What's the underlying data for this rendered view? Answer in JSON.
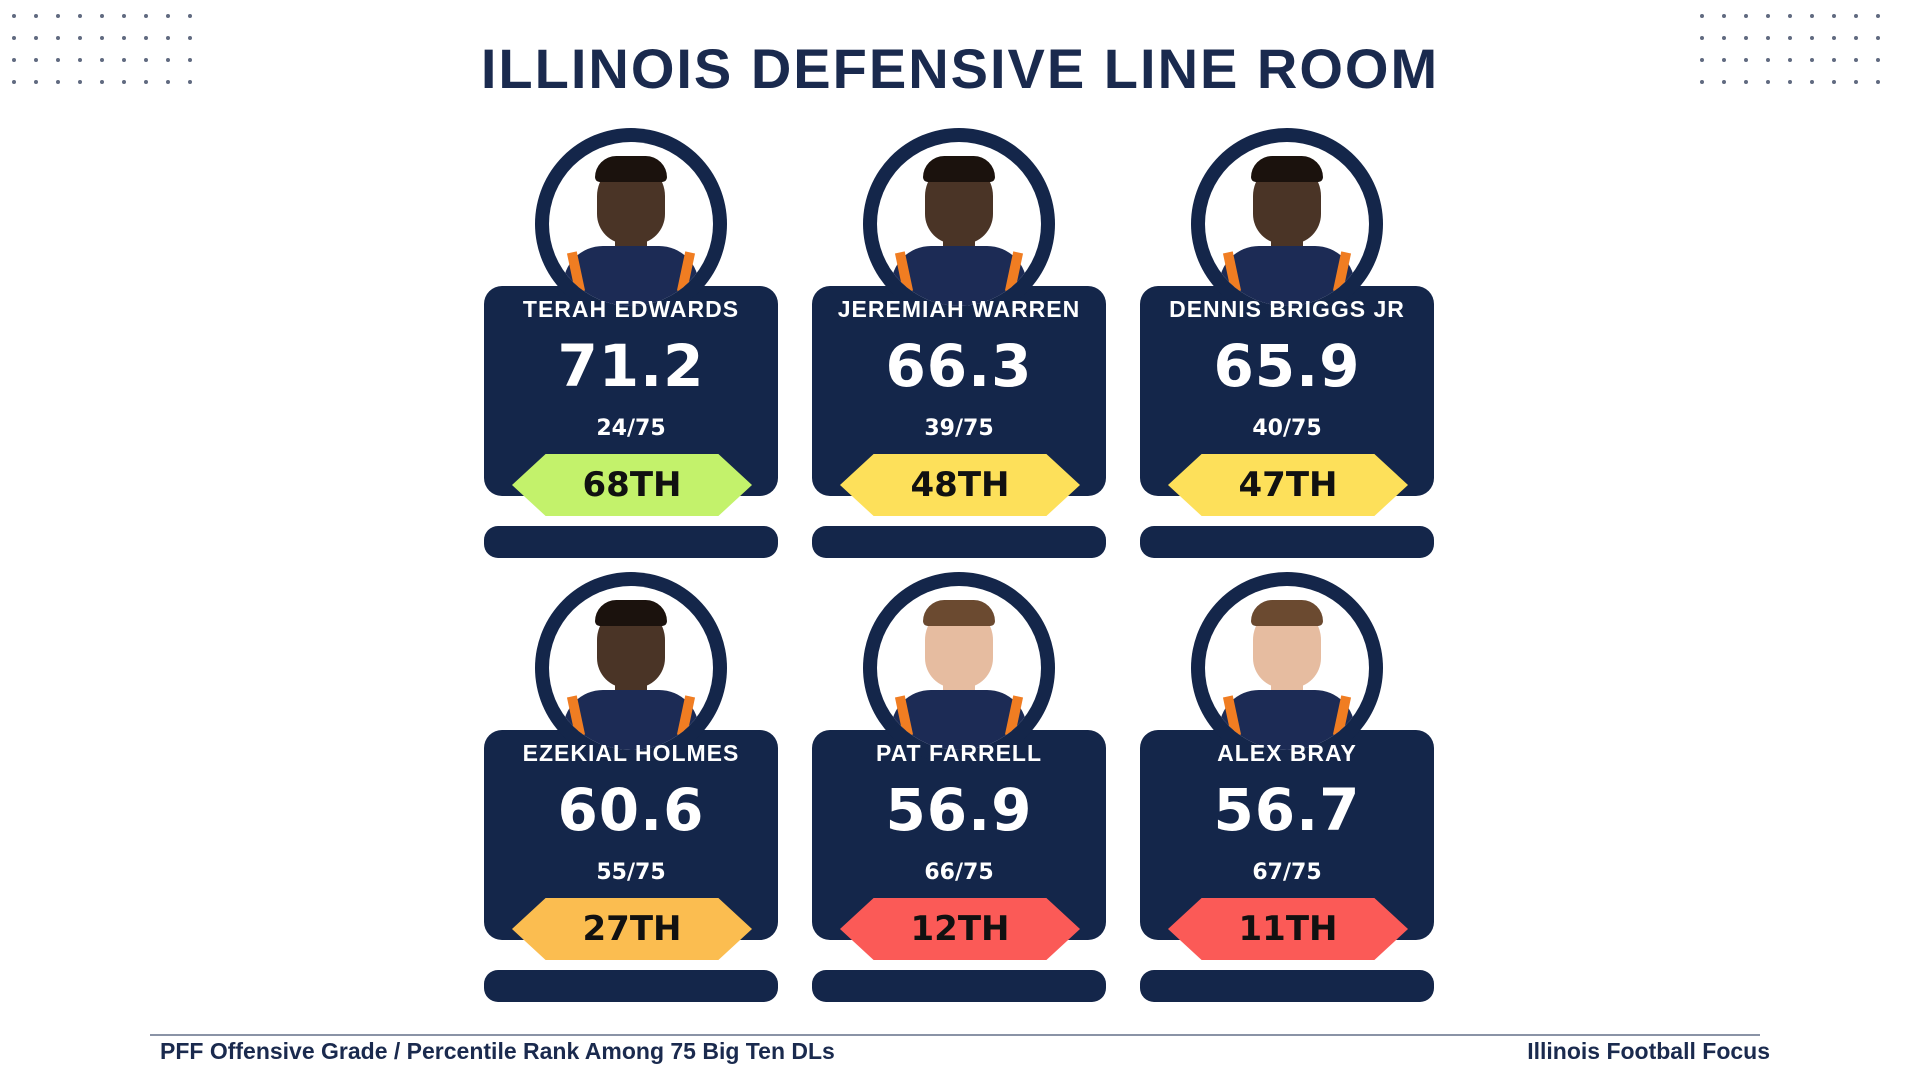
{
  "title": "ILLINOIS DEFENSIVE LINE ROOM",
  "colors": {
    "navy": "#14264a",
    "jersey_orange": "#f07d22",
    "tier_high": "#c3f26b",
    "tier_mid": "#fde05a",
    "tier_midlow": "#fbbd50",
    "tier_low": "#fb5a57"
  },
  "players": [
    {
      "name": "TERAH EDWARDS",
      "grade": "71.2",
      "rank": "24/75",
      "percentile": "68TH",
      "badge_color": "#c3f26b"
    },
    {
      "name": "JEREMIAH WARREN",
      "grade": "66.3",
      "rank": "39/75",
      "percentile": "48TH",
      "badge_color": "#fde05a"
    },
    {
      "name": "DENNIS BRIGGS JR",
      "grade": "65.9",
      "rank": "40/75",
      "percentile": "47TH",
      "badge_color": "#fde05a"
    },
    {
      "name": "EZEKIAL HOLMES",
      "grade": "60.6",
      "rank": "55/75",
      "percentile": "27TH",
      "badge_color": "#fbbd50"
    },
    {
      "name": "PAT FARRELL",
      "grade": "56.9",
      "rank": "66/75",
      "percentile": "12TH",
      "badge_color": "#fb5a57"
    },
    {
      "name": "ALEX BRAY",
      "grade": "56.7",
      "rank": "67/75",
      "percentile": "11TH",
      "badge_color": "#fb5a57"
    }
  ],
  "footer": {
    "left": "PFF Offensive Grade / Percentile Rank Among 75 Big Ten DLs",
    "right": "Illinois Football Focus"
  }
}
